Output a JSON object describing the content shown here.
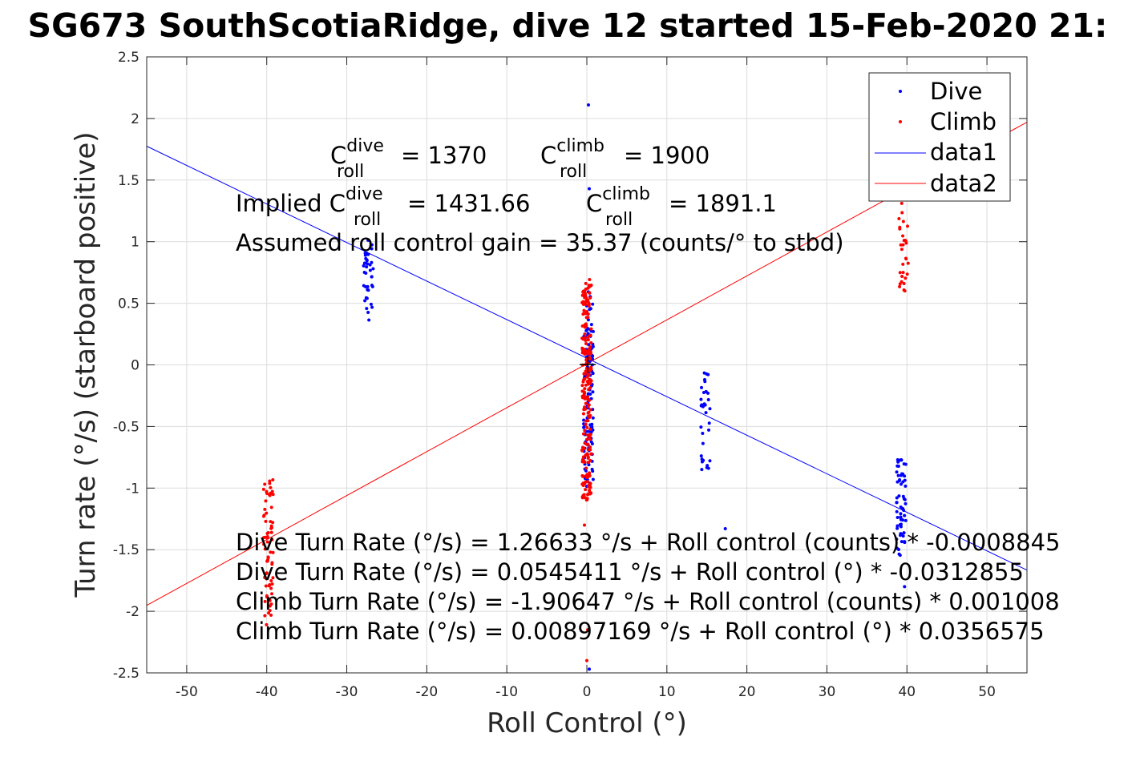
{
  "chart_data": {
    "type": "scatter",
    "title": "SG673 SouthScotiaRidge, dive 12 started 15-Feb-2020 21:",
    "xlabel": "Roll Control (°)",
    "ylabel": "Turn rate (°/s) (starboard positive)",
    "xlim": [
      -55,
      55
    ],
    "ylim": [
      -2.5,
      2.5
    ],
    "xticks": [
      -50,
      -40,
      -30,
      -20,
      -10,
      0,
      10,
      20,
      30,
      40,
      50
    ],
    "yticks": [
      -2.5,
      -2,
      -1.5,
      -1,
      -0.5,
      0,
      0.5,
      1,
      1.5,
      2,
      2.5
    ],
    "xtick_labels": [
      "-50",
      "-40",
      "-30",
      "-20",
      "-10",
      "0",
      "10",
      "20",
      "30",
      "40",
      "50"
    ],
    "ytick_labels": [
      "-2.5",
      "-2",
      "-1.5",
      "-1",
      "-0.5",
      "0",
      "0.5",
      "1",
      "1.5",
      "2",
      "2.5"
    ],
    "grid": true,
    "legend_position": "top-right",
    "legend": [
      "Dive",
      "Climb",
      "data1",
      "data2"
    ],
    "series": [
      {
        "name": "Dive",
        "kind": "points",
        "color": "#0000ff",
        "clusters": [
          {
            "x": -27.3,
            "ymin": 0.35,
            "ymax": 1.03,
            "count": 38
          },
          {
            "x": 0.2,
            "ymin": -1.0,
            "ymax": 0.6,
            "count": 120
          },
          {
            "x": 14.8,
            "ymin": -0.86,
            "ymax": -0.06,
            "count": 32
          },
          {
            "x": 39.3,
            "ymin": -1.55,
            "ymax": -0.74,
            "count": 60
          }
        ],
        "extra_points": [
          {
            "x": 0.2,
            "y": 2.11
          },
          {
            "x": 0.3,
            "y": 1.43
          },
          {
            "x": 0.3,
            "y": -2.47
          },
          {
            "x": 17.3,
            "y": -1.33
          },
          {
            "x": 39.7,
            "y": -1.8
          }
        ]
      },
      {
        "name": "Climb",
        "kind": "points",
        "color": "#ff0000",
        "clusters": [
          {
            "x": -39.8,
            "ymin": -2.12,
            "ymax": -0.92,
            "count": 70
          },
          {
            "x": 0.0,
            "ymin": -1.1,
            "ymax": 0.7,
            "count": 220
          },
          {
            "x": 39.6,
            "ymin": 0.58,
            "ymax": 1.55,
            "count": 45
          }
        ],
        "extra_points": [
          {
            "x": 0.0,
            "y": -2.4
          },
          {
            "x": 0.1,
            "y": -2.15
          },
          {
            "x": -0.3,
            "y": -1.3
          }
        ]
      },
      {
        "name": "data1",
        "kind": "line",
        "color": "#0000ff",
        "x": [
          -55,
          55
        ],
        "y": [
          1.775,
          -1.666
        ]
      },
      {
        "name": "data2",
        "kind": "line",
        "color": "#ff0000",
        "x": [
          -55,
          55
        ],
        "y": [
          -1.952,
          1.97
        ]
      }
    ],
    "annotations": {
      "c_roll_dive": "= 1370",
      "c_roll_climb": "= 1900",
      "implied_prefix": "Implied C",
      "implied_dive": "= 1431.66",
      "implied_climb": "= 1891.1",
      "gain": "Assumed roll control gain = 35.37 (counts/° to stbd)",
      "eq1": "Dive Turn Rate (°/s) = 1.26633 °/s + Roll control (counts) * -0.0008845",
      "eq2": "Dive Turn Rate (°/s) = 0.0545411 °/s + Roll control (°) * -0.0312855",
      "eq3": "Climb Turn Rate (°/s) = -1.90647 °/s + Roll control (counts) * 0.001008",
      "eq4": "Climb Turn Rate (°/s) = 0.00897169 °/s + Roll control (°) * 0.0356575",
      "C": "C",
      "sub_roll": "roll",
      "sup_dive": "dive",
      "sup_climb": "climb"
    }
  }
}
